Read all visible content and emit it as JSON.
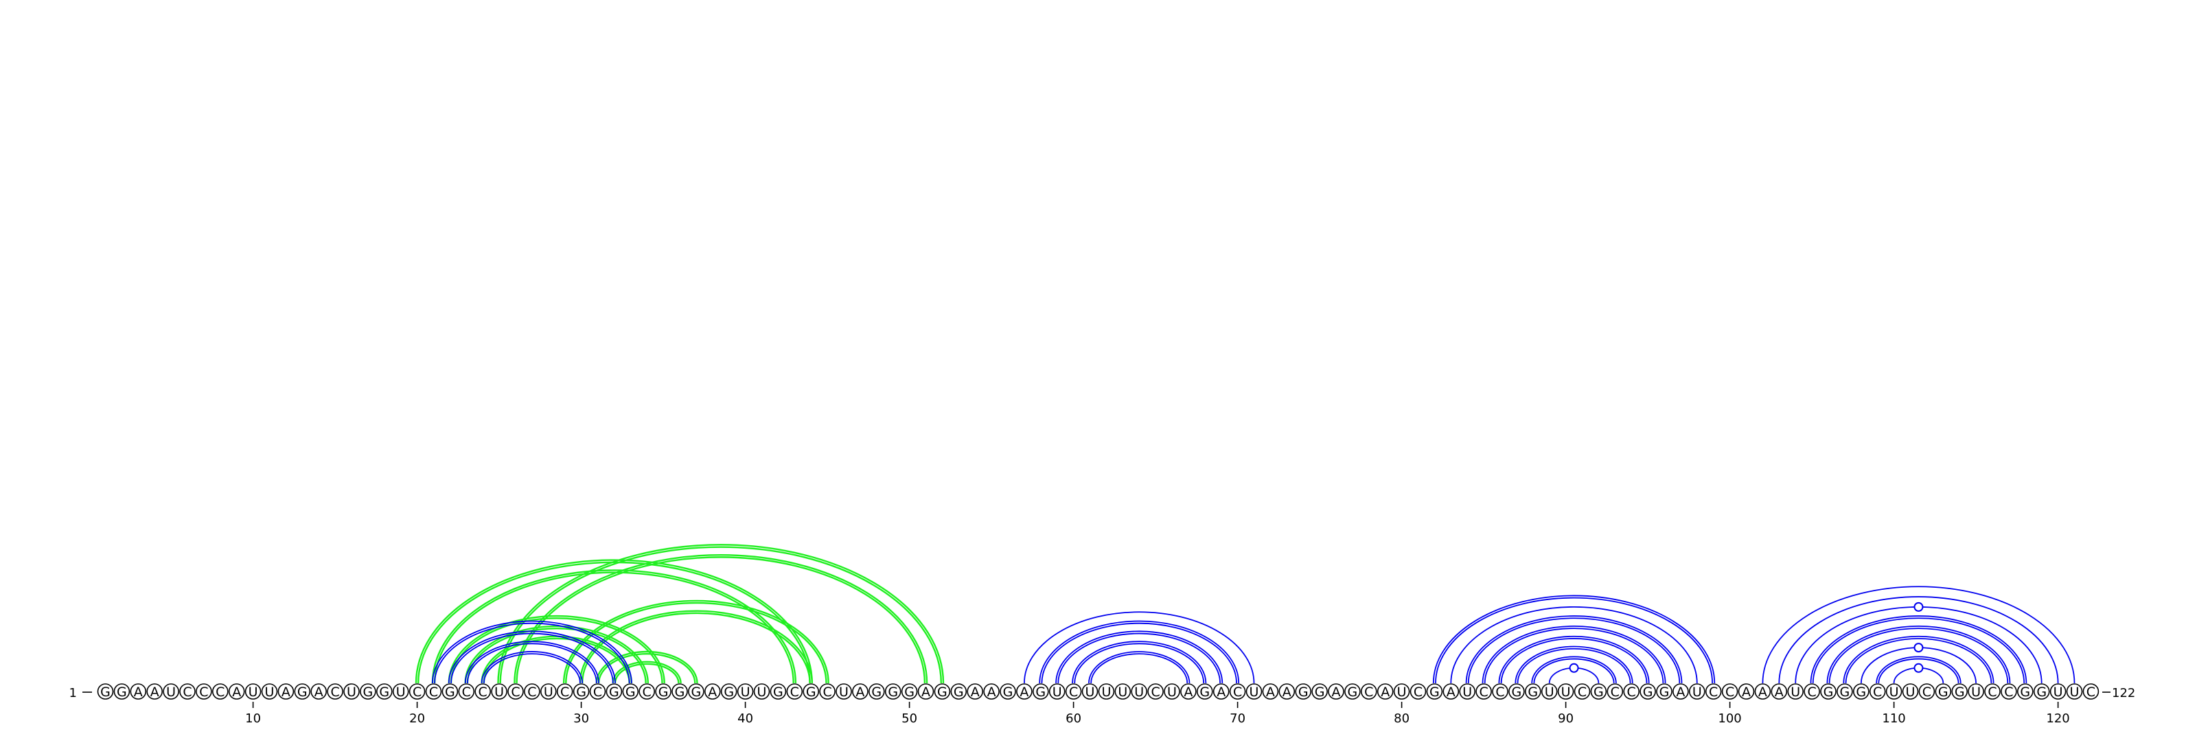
{
  "sequence": "GGAAUCCCAUUAGACUGGUCCGCCUCCUCGCGGCGGGAGUUGCGCUAGGGAGGAAGAGUCUUUUCUAGACUAAGGAGCAUCGAUCCGGUUCGCCGGAUCCAAAUCGGGCUUCGGUCCGGUUC",
  "start_label": "1",
  "end_label": "122",
  "ticks": [
    10,
    20,
    30,
    40,
    50,
    60,
    70,
    80,
    90,
    100,
    110,
    120
  ],
  "colors": {
    "blue": "#0000ee",
    "green": "#22ee22"
  },
  "pairs": [
    {
      "i": 20,
      "j": 44,
      "color": "green",
      "style": "double"
    },
    {
      "i": 21,
      "j": 43,
      "color": "green",
      "style": "double"
    },
    {
      "i": 22,
      "j": 35,
      "color": "green",
      "style": "double"
    },
    {
      "i": 23,
      "j": 34,
      "color": "green",
      "style": "double"
    },
    {
      "i": 24,
      "j": 33,
      "color": "green",
      "style": "double"
    },
    {
      "i": 25,
      "j": 52,
      "color": "green",
      "style": "double"
    },
    {
      "i": 26,
      "j": 51,
      "color": "green",
      "style": "double"
    },
    {
      "i": 29,
      "j": 45,
      "color": "green",
      "style": "double"
    },
    {
      "i": 30,
      "j": 44,
      "color": "green",
      "style": "double"
    },
    {
      "i": 31,
      "j": 37,
      "color": "green",
      "style": "double"
    },
    {
      "i": 32,
      "j": 36,
      "color": "green",
      "style": "double"
    },
    {
      "i": 21,
      "j": 33,
      "color": "blue",
      "style": "double"
    },
    {
      "i": 22,
      "j": 32,
      "color": "blue",
      "style": "double"
    },
    {
      "i": 23,
      "j": 31,
      "color": "blue",
      "style": "double"
    },
    {
      "i": 24,
      "j": 30,
      "color": "blue",
      "style": "double"
    },
    {
      "i": 57,
      "j": 71,
      "color": "blue",
      "style": "single"
    },
    {
      "i": 58,
      "j": 70,
      "color": "blue",
      "style": "double"
    },
    {
      "i": 59,
      "j": 69,
      "color": "blue",
      "style": "double"
    },
    {
      "i": 60,
      "j": 68,
      "color": "blue",
      "style": "double"
    },
    {
      "i": 61,
      "j": 67,
      "color": "blue",
      "style": "double"
    },
    {
      "i": 82,
      "j": 99,
      "color": "blue",
      "style": "double"
    },
    {
      "i": 83,
      "j": 98,
      "color": "blue",
      "style": "single"
    },
    {
      "i": 84,
      "j": 97,
      "color": "blue",
      "style": "double"
    },
    {
      "i": 85,
      "j": 96,
      "color": "blue",
      "style": "double"
    },
    {
      "i": 86,
      "j": 95,
      "color": "blue",
      "style": "double"
    },
    {
      "i": 87,
      "j": 94,
      "color": "blue",
      "style": "double"
    },
    {
      "i": 88,
      "j": 93,
      "color": "blue",
      "style": "double"
    },
    {
      "i": 89,
      "j": 92,
      "color": "blue",
      "style": "single",
      "marker": true
    },
    {
      "i": 102,
      "j": 121,
      "color": "blue",
      "style": "single"
    },
    {
      "i": 103,
      "j": 120,
      "color": "blue",
      "style": "single"
    },
    {
      "i": 104,
      "j": 119,
      "color": "blue",
      "style": "single",
      "marker": true
    },
    {
      "i": 105,
      "j": 118,
      "color": "blue",
      "style": "double"
    },
    {
      "i": 106,
      "j": 117,
      "color": "blue",
      "style": "double"
    },
    {
      "i": 107,
      "j": 116,
      "color": "blue",
      "style": "double"
    },
    {
      "i": 108,
      "j": 115,
      "color": "blue",
      "style": "single",
      "marker": true
    },
    {
      "i": 109,
      "j": 114,
      "color": "blue",
      "style": "double"
    },
    {
      "i": 110,
      "j": 113,
      "color": "blue",
      "style": "single",
      "marker": true
    }
  ]
}
